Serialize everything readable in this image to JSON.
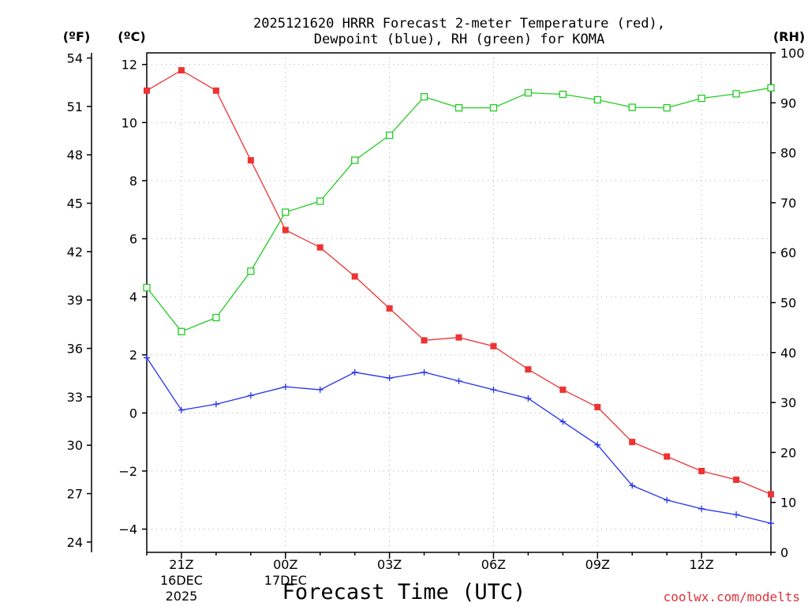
{
  "chart_data": {
    "type": "line",
    "title_line1": "2025121620 HRRR Forecast 2-meter Temperature (red),",
    "title_line2": "Dewpoint (blue), RH (green) for KOMA",
    "xlabel": "Forecast Time (UTC)",
    "credit": "coolwx.com/modelts",
    "units": {
      "fahrenheit": "(ºF)",
      "celsius": "(ºC)",
      "rh": "(RH)"
    },
    "x_hours": [
      20,
      21,
      22,
      23,
      24,
      25,
      26,
      27,
      28,
      29,
      30,
      31,
      32,
      33,
      34,
      35,
      36,
      37,
      38
    ],
    "x_range": [
      20,
      38
    ],
    "x_ticks": [
      {
        "hour": 21,
        "label": "21Z",
        "line2": "16DEC",
        "line3": "2025"
      },
      {
        "hour": 24,
        "label": "00Z",
        "line2": "17DEC",
        "line3": ""
      },
      {
        "hour": 27,
        "label": "03Z",
        "line2": "",
        "line3": ""
      },
      {
        "hour": 30,
        "label": "06Z",
        "line2": "",
        "line3": ""
      },
      {
        "hour": 33,
        "label": "09Z",
        "line2": "",
        "line3": ""
      },
      {
        "hour": 36,
        "label": "12Z",
        "line2": "",
        "line3": ""
      }
    ],
    "celsius_axis": {
      "range": [
        -4.8,
        12.4
      ],
      "ticks": [
        12,
        10,
        8,
        6,
        4,
        2,
        0,
        -2,
        -4
      ]
    },
    "fahrenheit_axis": {
      "ticks": [
        54,
        51,
        48,
        45,
        42,
        39,
        36,
        33,
        30,
        27,
        24
      ]
    },
    "rh_axis": {
      "range": [
        0,
        100
      ],
      "ticks": [
        100,
        90,
        80,
        70,
        60,
        50,
        40,
        30,
        20,
        10,
        0
      ]
    },
    "series": [
      {
        "name": "Temperature",
        "unit": "C",
        "color": "#ee3333",
        "marker": "filled-square",
        "values": [
          11.1,
          11.8,
          11.1,
          8.7,
          6.3,
          5.7,
          4.7,
          3.6,
          2.5,
          2.6,
          2.3,
          1.5,
          0.8,
          0.2,
          -1.0,
          -1.5,
          -2.0,
          -2.3,
          -2.8
        ]
      },
      {
        "name": "Dewpoint",
        "unit": "C",
        "color": "#2233ee",
        "marker": "plus",
        "values": [
          1.9,
          0.1,
          0.3,
          0.6,
          0.9,
          0.8,
          1.4,
          1.2,
          1.4,
          1.1,
          0.8,
          0.5,
          -0.3,
          -1.1,
          -2.5,
          -3.0,
          -3.3,
          -3.5,
          -3.8
        ]
      },
      {
        "name": "RH",
        "unit": "%",
        "color": "#22cc22",
        "marker": "open-square",
        "values": [
          53.0,
          44.2,
          47.0,
          56.3,
          68.1,
          70.3,
          78.5,
          83.5,
          91.2,
          89.0,
          89.0,
          92.0,
          91.7,
          90.6,
          89.1,
          89.0,
          90.9,
          91.8,
          93.0
        ]
      }
    ]
  }
}
